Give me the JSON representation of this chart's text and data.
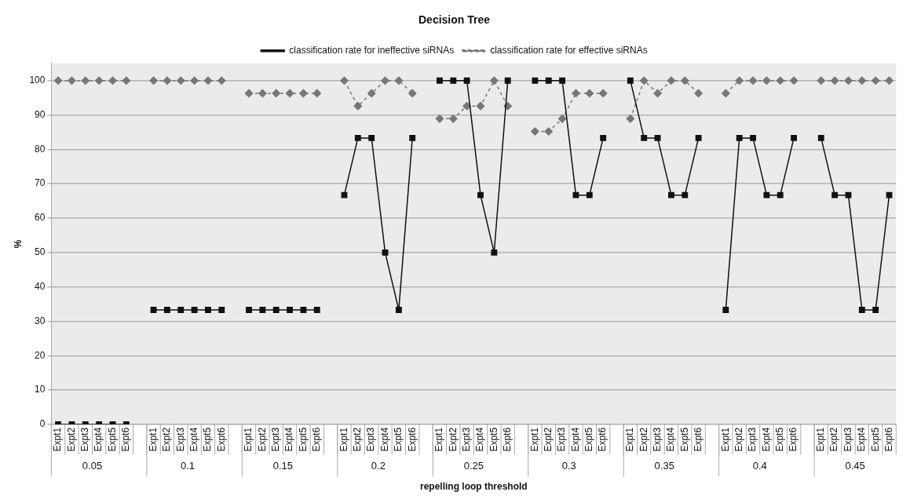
{
  "chart_data": {
    "type": "line",
    "title": "Decision Tree",
    "xlabel": "repelling loop threshold",
    "ylabel": "%",
    "categories": [
      "Expt1",
      "Expt2",
      "Expt3",
      "Expt4",
      "Expt5",
      "Expt6",
      null,
      "Expt1",
      "Expt2",
      "Expt3",
      "Expt4",
      "Expt5",
      "Expt6",
      null,
      "Expt1",
      "Expt2",
      "Expt3",
      "Expt4",
      "Expt5",
      "Expt6",
      null,
      "Expt1",
      "Expt2",
      "Expt3",
      "Expt4",
      "Expt5",
      "Expt6",
      null,
      "Expt1",
      "Expt2",
      "Expt3",
      "Expt4",
      "Expt5",
      "Expt6",
      null,
      "Expt1",
      "Expt2",
      "Expt3",
      "Expt4",
      "Expt5",
      "Expt6",
      null,
      "Expt1",
      "Expt2",
      "Expt3",
      "Expt4",
      "Expt5",
      "Expt6",
      null,
      "Expt1",
      "Expt2",
      "Expt3",
      "Expt4",
      "Expt5",
      "Expt6",
      null,
      "Expt1",
      "Expt2",
      "Expt3",
      "Expt4",
      "Expt5",
      "Expt6"
    ],
    "series": [
      {
        "name": "classification rate for ineffective siRNAs",
        "color": "#111111",
        "marker": "square",
        "line_style": "solid",
        "values": [
          0,
          0,
          0,
          0,
          0,
          0,
          null,
          33.3,
          33.3,
          33.3,
          33.3,
          33.3,
          33.3,
          null,
          33.3,
          33.3,
          33.3,
          33.3,
          33.3,
          33.3,
          null,
          66.7,
          83.3,
          83.3,
          50,
          33.3,
          83.3,
          null,
          100,
          100,
          100,
          66.7,
          50,
          100,
          null,
          100,
          100,
          100,
          66.7,
          66.7,
          83.3,
          null,
          100,
          83.3,
          83.3,
          66.7,
          66.7,
          83.3,
          null,
          33.3,
          83.3,
          83.3,
          66.7,
          66.7,
          83.3,
          null,
          83.3,
          66.7,
          66.7,
          33.3,
          33.3,
          66.7
        ]
      },
      {
        "name": "classification rate for effective siRNAs",
        "color": "#777777",
        "marker": "diamond",
        "line_style": "dashed",
        "values": [
          100,
          100,
          100,
          100,
          100,
          100,
          null,
          100,
          100,
          100,
          100,
          100,
          100,
          null,
          96.3,
          96.3,
          96.3,
          96.3,
          96.3,
          96.3,
          null,
          100,
          92.6,
          96.3,
          100,
          100,
          96.3,
          null,
          88.9,
          88.9,
          92.6,
          92.6,
          100,
          92.6,
          null,
          85.2,
          85.2,
          88.9,
          96.3,
          96.3,
          96.3,
          null,
          88.9,
          100,
          96.3,
          100,
          100,
          96.3,
          null,
          96.3,
          100,
          100,
          100,
          100,
          100,
          null,
          100,
          100,
          100,
          100,
          100,
          100
        ]
      }
    ],
    "annotations": [
      "0.05",
      "0.1",
      "0.15",
      "0.2",
      "0.25",
      "0.3",
      "0.35",
      "0.4",
      "0.45"
    ],
    "ylim": [
      0,
      105
    ],
    "yticks": [
      0,
      10,
      20,
      30,
      40,
      50,
      60,
      70,
      80,
      90,
      100
    ],
    "grid": "y",
    "legend": "top"
  }
}
